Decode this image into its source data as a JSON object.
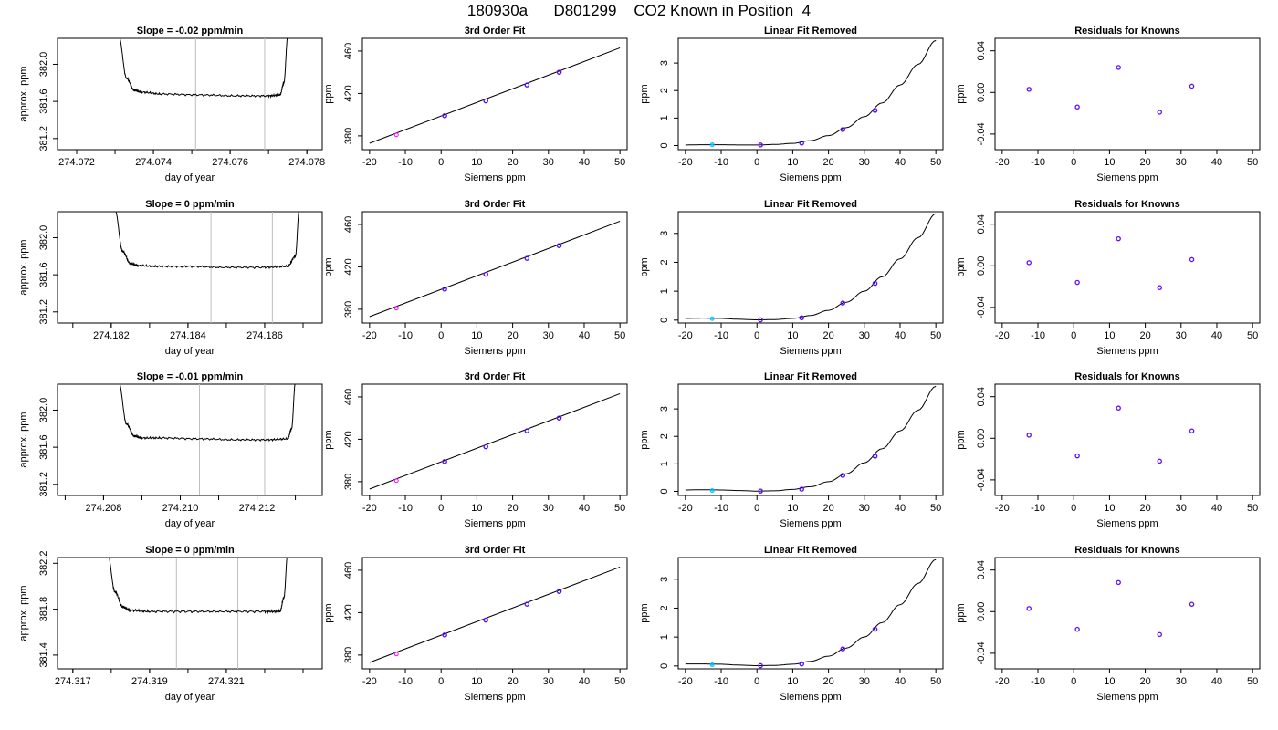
{
  "title": "180930a      D801299    CO2 Known in Position  4",
  "colors": {
    "curve": "#000000",
    "frame": "#000000",
    "vline": "#bebebe",
    "point_blue": "#0000ff",
    "point_purple": "#a020f0",
    "point_magenta": "#ff00ff",
    "point_cyan": "#00bfff",
    "point_red": "#ff0000"
  },
  "chart_data": [
    {
      "type": "line",
      "row": 1,
      "col": 1,
      "title": "Slope =  -0.02  ppm/min",
      "xlabel": "day of year",
      "ylabel": "approx. ppm",
      "xticks": [
        "274.072",
        "274.074",
        "274.076",
        "274.078"
      ],
      "yticks": [
        "381.2",
        "381.6",
        "382.0"
      ],
      "xlim": [
        274.0715,
        274.0784
      ],
      "ylim": [
        381.08,
        382.28
      ],
      "vlines": [
        274.0751,
        274.0769
      ],
      "series": [
        {
          "x": [
            274.0731,
            274.0733,
            274.0735,
            274.0737,
            274.0742,
            274.0752,
            274.0762,
            274.077,
            274.0773,
            274.0774,
            274.0775
          ],
          "y": [
            382.3,
            381.85,
            381.72,
            381.7,
            381.68,
            381.67,
            381.66,
            381.66,
            381.67,
            381.8,
            382.3
          ]
        }
      ]
    },
    {
      "type": "line",
      "row": 1,
      "col": 2,
      "title": "3rd Order Fit",
      "xlabel": "Siemens ppm",
      "ylabel": "ppm",
      "xticks": [
        "-20",
        "-10",
        "0",
        "10",
        "20",
        "30",
        "40",
        "50"
      ],
      "yticks": [
        "380",
        "420",
        "460"
      ],
      "xlim": [
        -22,
        52
      ],
      "ylim": [
        367,
        472
      ],
      "fit": {
        "x": [
          -20,
          50
        ],
        "y": [
          373,
          463
        ]
      },
      "points": {
        "x": [
          -12.5,
          1,
          12.5,
          24,
          33
        ],
        "y": [
          381,
          399,
          413,
          428,
          440
        ]
      }
    },
    {
      "type": "line",
      "row": 1,
      "col": 3,
      "title": "Linear Fit Removed",
      "xlabel": "Siemens ppm",
      "ylabel": "ppm",
      "xticks": [
        "-20",
        "-10",
        "0",
        "10",
        "20",
        "30",
        "40",
        "50"
      ],
      "yticks": [
        "0",
        "1",
        "2",
        "3"
      ],
      "xlim": [
        -22,
        52
      ],
      "ylim": [
        -0.15,
        3.9
      ],
      "curve_x": [
        -20,
        -15,
        -10,
        -5,
        0,
        5,
        10,
        15,
        20,
        25,
        30,
        35,
        40,
        45,
        50
      ],
      "curve_y": [
        0.02,
        0.03,
        0.03,
        0.02,
        0.02,
        0.04,
        0.08,
        0.18,
        0.36,
        0.65,
        1.05,
        1.55,
        2.2,
        2.95,
        3.82
      ],
      "points": {
        "x": [
          -12.5,
          1,
          12.5,
          24,
          33
        ],
        "y": [
          0.03,
          0.02,
          0.09,
          0.58,
          1.28
        ]
      }
    },
    {
      "type": "scatter",
      "row": 1,
      "col": 4,
      "title": "Residuals for Knowns",
      "xlabel": "Siemens ppm",
      "ylabel": "ppm",
      "xticks": [
        "-20",
        "-10",
        "0",
        "10",
        "20",
        "30",
        "40",
        "50"
      ],
      "yticks": [
        "-0.04",
        "0.00",
        "0.04"
      ],
      "xlim": [
        -22,
        52
      ],
      "ylim": [
        -0.055,
        0.052
      ],
      "points": {
        "x": [
          -12.5,
          1,
          12.5,
          24,
          33
        ],
        "y": [
          0.003,
          -0.014,
          0.024,
          -0.019,
          0.006
        ]
      }
    },
    {
      "type": "line",
      "row": 2,
      "col": 1,
      "title": "Slope =  0  ppm/min",
      "xlabel": "day of year",
      "ylabel": "approx. ppm",
      "xticks": [
        "274.182",
        "274.184",
        "274.186"
      ],
      "yticks": [
        "381.2",
        "381.6",
        "382.0"
      ],
      "xlim": [
        274.1806,
        274.1875
      ],
      "ylim": [
        381.08,
        382.28
      ],
      "vlines": [
        274.1846,
        274.1862
      ],
      "series": [
        {
          "x": [
            274.1821,
            274.1823,
            274.1825,
            274.1827,
            274.1832,
            274.184,
            274.185,
            274.186,
            274.1866,
            274.1868,
            274.1869
          ],
          "y": [
            382.3,
            381.85,
            381.72,
            381.7,
            381.69,
            381.69,
            381.68,
            381.68,
            381.69,
            381.8,
            382.3
          ]
        }
      ]
    },
    {
      "type": "line",
      "row": 2,
      "col": 2,
      "title": "3rd Order Fit",
      "xlabel": "Siemens ppm",
      "ylabel": "ppm",
      "xticks": [
        "-20",
        "-10",
        "0",
        "10",
        "20",
        "30",
        "40",
        "50"
      ],
      "yticks": [
        "380",
        "420",
        "460"
      ],
      "xlim": [
        -22,
        52
      ],
      "ylim": [
        367,
        472
      ],
      "fit": {
        "x": [
          -20,
          50
        ],
        "y": [
          373,
          463
        ]
      },
      "points": {
        "x": [
          -12.5,
          1,
          12.5,
          24,
          33
        ],
        "y": [
          381,
          399,
          413,
          428,
          440
        ]
      }
    },
    {
      "type": "line",
      "row": 2,
      "col": 3,
      "title": "Linear Fit Removed",
      "xlabel": "Siemens ppm",
      "ylabel": "ppm",
      "xticks": [
        "-20",
        "-10",
        "0",
        "10",
        "20",
        "30",
        "40",
        "50"
      ],
      "yticks": [
        "0",
        "1",
        "2",
        "3"
      ],
      "xlim": [
        -22,
        52
      ],
      "ylim": [
        -0.1,
        3.75
      ],
      "curve_x": [
        -20,
        -15,
        -10,
        -5,
        0,
        5,
        10,
        15,
        20,
        25,
        30,
        35,
        40,
        45,
        50
      ],
      "curve_y": [
        0.06,
        0.07,
        0.06,
        0.03,
        0.01,
        0.02,
        0.06,
        0.16,
        0.34,
        0.62,
        1.0,
        1.5,
        2.12,
        2.85,
        3.68
      ],
      "points": {
        "x": [
          -12.5,
          1,
          12.5,
          24,
          33
        ],
        "y": [
          0.05,
          0.01,
          0.08,
          0.59,
          1.27
        ]
      }
    },
    {
      "type": "scatter",
      "row": 2,
      "col": 4,
      "title": "Residuals for Knowns",
      "xlabel": "Siemens ppm",
      "ylabel": "ppm",
      "xticks": [
        "-20",
        "-10",
        "0",
        "10",
        "20",
        "30",
        "40",
        "50"
      ],
      "yticks": [
        "-0.04",
        "0.00",
        "0.04"
      ],
      "xlim": [
        -22,
        52
      ],
      "ylim": [
        -0.055,
        0.052
      ],
      "points": {
        "x": [
          -12.5,
          1,
          12.5,
          24,
          33
        ],
        "y": [
          0.003,
          -0.016,
          0.026,
          -0.021,
          0.006
        ]
      }
    },
    {
      "type": "line",
      "row": 3,
      "col": 1,
      "title": "Slope =  -0.01  ppm/min",
      "xlabel": "day of year",
      "ylabel": "approx. ppm",
      "xticks": [
        "274.208",
        "274.210",
        "274.212"
      ],
      "yticks": [
        "381.2",
        "381.6",
        "382.0"
      ],
      "xlim": [
        274.2068,
        274.2137
      ],
      "ylim": [
        381.08,
        382.28
      ],
      "vlines": [
        274.2105,
        274.2122
      ],
      "series": [
        {
          "x": [
            274.2084,
            274.2086,
            274.2088,
            274.209,
            274.2095,
            274.2105,
            274.2115,
            274.2123,
            274.2128,
            274.2129,
            274.213
          ],
          "y": [
            382.3,
            381.85,
            381.72,
            381.7,
            381.7,
            381.69,
            381.68,
            381.68,
            381.69,
            381.8,
            382.3
          ]
        }
      ]
    },
    {
      "type": "line",
      "row": 3,
      "col": 2,
      "title": "3rd Order Fit",
      "xlabel": "Siemens ppm",
      "ylabel": "ppm",
      "xticks": [
        "-20",
        "-10",
        "0",
        "10",
        "20",
        "30",
        "40",
        "50"
      ],
      "yticks": [
        "380",
        "420",
        "460"
      ],
      "xlim": [
        -22,
        52
      ],
      "ylim": [
        367,
        472
      ],
      "fit": {
        "x": [
          -20,
          50
        ],
        "y": [
          373,
          463
        ]
      },
      "points": {
        "x": [
          -12.5,
          1,
          12.5,
          24,
          33
        ],
        "y": [
          381,
          399,
          413,
          428,
          440
        ]
      }
    },
    {
      "type": "line",
      "row": 3,
      "col": 3,
      "title": "Linear Fit Removed",
      "xlabel": "Siemens ppm",
      "ylabel": "ppm",
      "xticks": [
        "-20",
        "-10",
        "0",
        "10",
        "20",
        "30",
        "40",
        "50"
      ],
      "yticks": [
        "0",
        "1",
        "2",
        "3"
      ],
      "xlim": [
        -22,
        52
      ],
      "ylim": [
        -0.15,
        3.9
      ],
      "curve_x": [
        -20,
        -15,
        -10,
        -5,
        0,
        5,
        10,
        15,
        20,
        25,
        30,
        35,
        40,
        45,
        50
      ],
      "curve_y": [
        0.05,
        0.06,
        0.05,
        0.03,
        0.01,
        0.02,
        0.07,
        0.17,
        0.35,
        0.64,
        1.04,
        1.55,
        2.2,
        2.95,
        3.82
      ],
      "points": {
        "x": [
          -12.5,
          1,
          12.5,
          24,
          33
        ],
        "y": [
          0.03,
          0.01,
          0.08,
          0.58,
          1.28
        ]
      }
    },
    {
      "type": "scatter",
      "row": 3,
      "col": 4,
      "title": "Residuals for Knowns",
      "xlabel": "Siemens ppm",
      "ylabel": "ppm",
      "xticks": [
        "-20",
        "-10",
        "0",
        "10",
        "20",
        "30",
        "40",
        "50"
      ],
      "yticks": [
        "-0.04",
        "0.00",
        "0.04"
      ],
      "xlim": [
        -22,
        52
      ],
      "ylim": [
        -0.055,
        0.052
      ],
      "points": {
        "x": [
          -12.5,
          1,
          12.5,
          24,
          33
        ],
        "y": [
          0.003,
          -0.017,
          0.029,
          -0.022,
          0.007
        ]
      }
    },
    {
      "type": "line",
      "row": 4,
      "col": 1,
      "title": "Slope =  0  ppm/min",
      "xlabel": "day of year",
      "ylabel": "approx. ppm",
      "xticks": [
        "274.317",
        "274.319",
        "274.321"
      ],
      "yticks": [
        "381.4",
        "381.8",
        "382.2"
      ],
      "xlim": [
        274.3166,
        274.3235
      ],
      "ylim": [
        381.28,
        382.25
      ],
      "vlines": [
        274.3197,
        274.3213
      ],
      "series": [
        {
          "x": [
            274.3179,
            274.3181,
            274.3183,
            274.3185,
            274.319,
            274.32,
            274.321,
            274.322,
            274.3224,
            274.3225,
            274.3226
          ],
          "y": [
            382.3,
            381.95,
            381.82,
            381.79,
            381.78,
            381.78,
            381.78,
            381.78,
            381.78,
            381.9,
            382.3
          ]
        }
      ]
    },
    {
      "type": "line",
      "row": 4,
      "col": 2,
      "title": "3rd Order Fit",
      "xlabel": "Siemens ppm",
      "ylabel": "ppm",
      "xticks": [
        "-20",
        "-10",
        "0",
        "10",
        "20",
        "30",
        "40",
        "50"
      ],
      "yticks": [
        "380",
        "420",
        "460"
      ],
      "xlim": [
        -22,
        52
      ],
      "ylim": [
        367,
        472
      ],
      "fit": {
        "x": [
          -20,
          50
        ],
        "y": [
          373,
          463
        ]
      },
      "points": {
        "x": [
          -12.5,
          1,
          12.5,
          24,
          33
        ],
        "y": [
          381,
          399,
          413,
          428,
          440
        ]
      }
    },
    {
      "type": "line",
      "row": 4,
      "col": 3,
      "title": "Linear Fit Removed",
      "xlabel": "Siemens ppm",
      "ylabel": "ppm",
      "xticks": [
        "-20",
        "-10",
        "0",
        "10",
        "20",
        "30",
        "40",
        "50"
      ],
      "yticks": [
        "0",
        "1",
        "2",
        "3"
      ],
      "xlim": [
        -22,
        52
      ],
      "ylim": [
        -0.1,
        3.75
      ],
      "curve_x": [
        -20,
        -15,
        -10,
        -5,
        0,
        5,
        10,
        15,
        20,
        25,
        30,
        35,
        40,
        45,
        50
      ],
      "curve_y": [
        0.07,
        0.07,
        0.06,
        0.03,
        0.01,
        0.02,
        0.06,
        0.16,
        0.34,
        0.62,
        1.0,
        1.5,
        2.12,
        2.85,
        3.68
      ],
      "points": {
        "x": [
          -12.5,
          1,
          12.5,
          24,
          33
        ],
        "y": [
          0.04,
          0.01,
          0.07,
          0.59,
          1.27
        ]
      }
    },
    {
      "type": "scatter",
      "row": 4,
      "col": 4,
      "title": "Residuals for Knowns",
      "xlabel": "Siemens ppm",
      "ylabel": "ppm",
      "xticks": [
        "-20",
        "-10",
        "0",
        "10",
        "20",
        "30",
        "40",
        "50"
      ],
      "yticks": [
        "-0.04",
        "0.00",
        "0.04"
      ],
      "xlim": [
        -22,
        52
      ],
      "ylim": [
        -0.055,
        0.052
      ],
      "points": {
        "x": [
          -12.5,
          1,
          12.5,
          24,
          33
        ],
        "y": [
          0.003,
          -0.017,
          0.028,
          -0.022,
          0.007
        ]
      }
    }
  ]
}
